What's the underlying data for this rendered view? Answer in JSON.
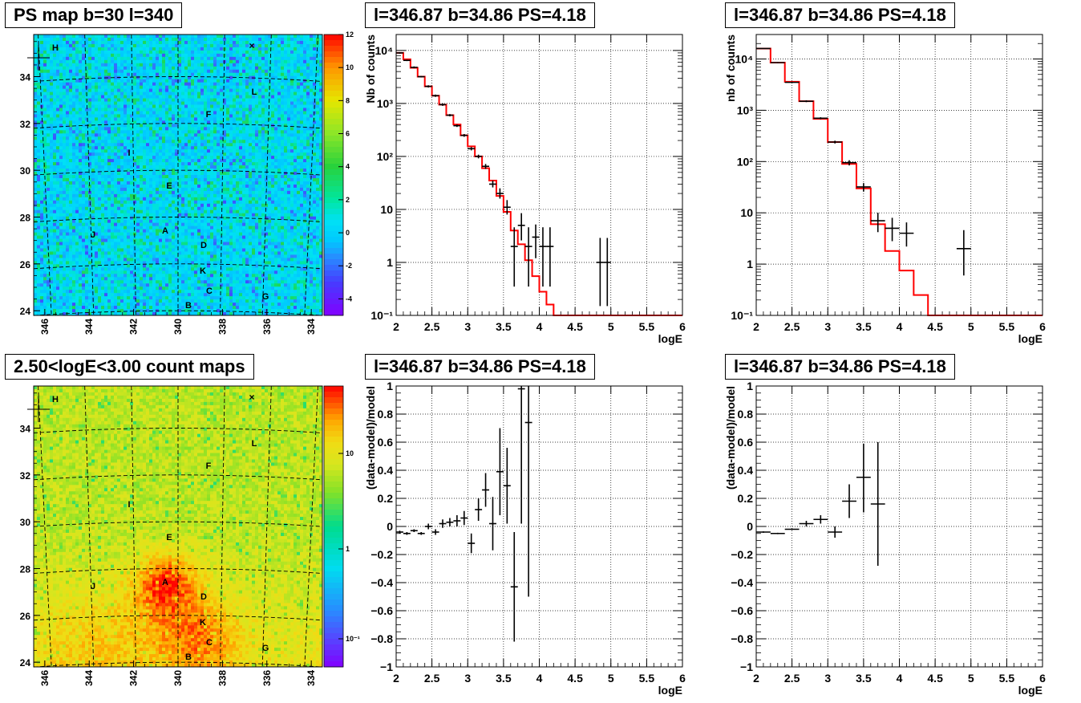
{
  "maps": [
    {
      "title": "PS map b=30 l=340",
      "palette": "residual",
      "x_ticks": [
        "346",
        "344",
        "342",
        "340",
        "338",
        "336",
        "334"
      ],
      "y_ticks": [
        "34",
        "32",
        "30",
        "28",
        "26",
        "24"
      ],
      "colorbar_ticks": [
        "12",
        "10",
        "8",
        "6",
        "4",
        "2",
        "0",
        "-2",
        "-4"
      ],
      "sources": [
        "H",
        "L",
        "F",
        "I",
        "E",
        "A",
        "J",
        "D",
        "K",
        "C",
        "B",
        "G"
      ],
      "l_range": [
        346.5,
        333.5
      ],
      "b_range": [
        23.8,
        35.8
      ],
      "colorbar_range": [
        -5,
        12
      ]
    },
    {
      "title": "2.50<logE<3.00 count maps",
      "palette": "counts",
      "x_ticks": [
        "346",
        "344",
        "342",
        "340",
        "338",
        "336",
        "334"
      ],
      "y_ticks": [
        "34",
        "32",
        "30",
        "28",
        "26",
        "24"
      ],
      "colorbar_ticks": [
        "10",
        "1",
        "10⁻¹"
      ],
      "sources": [
        "H",
        "L",
        "F",
        "I",
        "E",
        "A",
        "J",
        "D",
        "K",
        "C",
        "B",
        "G"
      ],
      "l_range": [
        346.5,
        333.5
      ],
      "b_range": [
        23.8,
        35.8
      ],
      "colorbar_scale": "log"
    }
  ],
  "chart_data": [
    {
      "type": "scatter",
      "title": "l=346.87 b=34.86 PS=4.18",
      "xlabel": "logE",
      "ylabel": "Nb of counts",
      "yscale": "log",
      "xlim": [
        2,
        6
      ],
      "ylim": [
        0.1,
        20000
      ],
      "xticks": [
        "2",
        "2.5",
        "3",
        "3.5",
        "4",
        "4.5",
        "5",
        "5.5",
        "6"
      ],
      "yticks": [
        "10⁻¹",
        "1",
        "10",
        "10²",
        "10³",
        "10⁴"
      ],
      "grid": true,
      "model_color": "#ff0000",
      "data_points": {
        "x": [
          2.05,
          2.15,
          2.25,
          2.35,
          2.45,
          2.55,
          2.65,
          2.75,
          2.85,
          2.95,
          3.05,
          3.15,
          3.25,
          3.35,
          3.45,
          3.55,
          3.65,
          3.75,
          3.85,
          3.95,
          4.05,
          4.15,
          4.85,
          4.95
        ],
        "y": [
          9000,
          6500,
          4800,
          3200,
          2100,
          1400,
          950,
          600,
          380,
          250,
          140,
          100,
          65,
          30,
          20,
          11,
          2,
          5,
          2,
          3,
          2,
          2,
          1,
          1
        ],
        "ylow": [
          8700,
          6300,
          4600,
          3100,
          2000,
          1330,
          900,
          570,
          360,
          235,
          130,
          92,
          58,
          26,
          16,
          8,
          0.35,
          2.6,
          0.35,
          1.2,
          0.35,
          0.35,
          0.15,
          0.15
        ],
        "yhigh": [
          9300,
          6700,
          5000,
          3300,
          2200,
          1470,
          1000,
          630,
          400,
          265,
          150,
          108,
          72,
          35,
          25,
          15,
          4.6,
          8.5,
          4.6,
          5.2,
          4.6,
          4.6,
          2.9,
          2.9
        ],
        "xerr": 0.05
      },
      "model_step": {
        "edges": [
          2.0,
          2.1,
          2.2,
          2.3,
          2.4,
          2.5,
          2.6,
          2.7,
          2.8,
          2.9,
          3.0,
          3.1,
          3.2,
          3.3,
          3.4,
          3.5,
          3.6,
          3.7,
          3.8,
          3.9,
          4.0,
          4.1,
          4.2,
          4.3,
          6.0
        ],
        "values": [
          9000,
          6800,
          4700,
          3200,
          2100,
          1400,
          950,
          600,
          400,
          250,
          155,
          100,
          60,
          35,
          18,
          9,
          4,
          2.2,
          1.1,
          0.55,
          0.28,
          0.16,
          0.1,
          0.08
        ]
      }
    },
    {
      "type": "scatter",
      "title": "l=346.87 b=34.86 PS=4.18",
      "xlabel": "logE",
      "ylabel": "nb of counts",
      "yscale": "log",
      "xlim": [
        2,
        6
      ],
      "ylim": [
        0.1,
        30000
      ],
      "xticks": [
        "2",
        "2.5",
        "3",
        "3.5",
        "4",
        "4.5",
        "5",
        "5.5",
        "6"
      ],
      "yticks": [
        "10⁻¹",
        "1",
        "10",
        "10²",
        "10³",
        "10⁴"
      ],
      "grid": true,
      "model_color": "#ff0000",
      "data_points": {
        "x": [
          2.1,
          2.3,
          2.5,
          2.7,
          2.9,
          3.1,
          3.3,
          3.5,
          3.7,
          3.9,
          4.1,
          4.9
        ],
        "y": [
          16000,
          8500,
          3500,
          1500,
          700,
          240,
          95,
          32,
          7,
          5,
          4,
          2
        ],
        "ylow": [
          15700,
          8300,
          3400,
          1440,
          670,
          225,
          84,
          26,
          4.2,
          2.8,
          2.2,
          0.6
        ],
        "yhigh": [
          16300,
          8700,
          3600,
          1560,
          730,
          255,
          106,
          38,
          10,
          8,
          6.5,
          4.6
        ],
        "xerr": 0.1
      },
      "model_step": {
        "edges": [
          2.0,
          2.2,
          2.4,
          2.6,
          2.8,
          3.0,
          3.2,
          3.4,
          3.6,
          3.8,
          4.0,
          4.2,
          4.4,
          6.0
        ],
        "values": [
          16000,
          8500,
          3600,
          1500,
          680,
          240,
          90,
          30,
          6,
          1.8,
          0.75,
          0.25,
          0.1
        ]
      }
    },
    {
      "type": "scatter",
      "title": "l=346.87 b=34.86 PS=4.18",
      "xlabel": "logE",
      "ylabel": "(data-model)/model",
      "xlim": [
        2,
        6
      ],
      "ylim": [
        -1,
        1
      ],
      "xticks": [
        "2",
        "2.5",
        "3",
        "3.5",
        "4",
        "4.5",
        "5",
        "5.5",
        "6"
      ],
      "yticks": [
        "−1",
        "−0.8",
        "−0.6",
        "−0.4",
        "−0.2",
        "0",
        "0.2",
        "0.4",
        "0.6",
        "0.8",
        "1"
      ],
      "grid": true,
      "data_points": {
        "x": [
          2.05,
          2.15,
          2.25,
          2.35,
          2.45,
          2.55,
          2.65,
          2.75,
          2.85,
          2.95,
          3.05,
          3.15,
          3.25,
          3.35,
          3.45,
          3.55,
          3.65,
          3.75,
          3.85
        ],
        "y": [
          -0.04,
          -0.05,
          -0.03,
          -0.05,
          0.0,
          -0.04,
          0.02,
          0.03,
          0.04,
          0.06,
          -0.12,
          0.12,
          0.26,
          0.02,
          0.39,
          0.29,
          -0.43,
          0.98,
          0.74
        ],
        "ylow": [
          -0.05,
          -0.06,
          -0.04,
          -0.06,
          -0.02,
          -0.06,
          -0.01,
          0.0,
          0.0,
          0.01,
          -0.19,
          0.04,
          0.14,
          -0.17,
          0.08,
          0.02,
          -0.82,
          0.02,
          -0.5
        ],
        "yhigh": [
          -0.03,
          -0.04,
          -0.02,
          -0.04,
          0.02,
          -0.02,
          0.05,
          0.06,
          0.08,
          0.11,
          -0.05,
          0.2,
          0.38,
          0.21,
          0.7,
          0.56,
          -0.04,
          1.0,
          1.0
        ],
        "xerr": 0.05
      }
    },
    {
      "type": "scatter",
      "title": "l=346.87 b=34.86 PS=4.18",
      "xlabel": "logE",
      "ylabel": "(data-model)/model",
      "xlim": [
        2,
        6
      ],
      "ylim": [
        -1,
        1
      ],
      "xticks": [
        "2",
        "2.5",
        "3",
        "3.5",
        "4",
        "4.5",
        "5",
        "5.5",
        "6"
      ],
      "yticks": [
        "−1",
        "−0.8",
        "−0.6",
        "−0.4",
        "−0.2",
        "0",
        "0.2",
        "0.4",
        "0.6",
        "0.8",
        "1"
      ],
      "grid": true,
      "data_points": {
        "x": [
          2.1,
          2.3,
          2.5,
          2.7,
          2.9,
          3.1,
          3.3,
          3.5,
          3.7
        ],
        "y": [
          -0.04,
          -0.05,
          -0.02,
          0.02,
          0.05,
          -0.04,
          0.18,
          0.35,
          0.16
        ],
        "ylow": [
          -0.045,
          -0.055,
          -0.025,
          0.0,
          0.02,
          -0.08,
          0.06,
          0.1,
          -0.28
        ],
        "yhigh": [
          -0.035,
          -0.045,
          -0.015,
          0.04,
          0.08,
          0.0,
          0.3,
          0.59,
          0.6
        ],
        "xerr": 0.1
      }
    }
  ]
}
